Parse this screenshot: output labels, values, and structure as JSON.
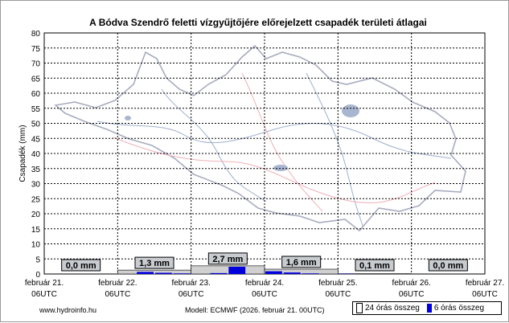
{
  "title": "A Bódva  Szendrő feletti vízgyűjtőjére előrejelzett csapadék területi átlagai",
  "colors": {
    "bar6h": "#0000dd",
    "bar24h": "#d0d0d0",
    "grid": "#000000",
    "map_line": "#a7acbf",
    "map_river": "#9fb0cf",
    "map_road": "#f0b0b8"
  },
  "chart_data": {
    "type": "bar",
    "ylabel": "Csapadék (mm)",
    "ylim": [
      0,
      80
    ],
    "yticks": [
      0,
      5,
      10,
      15,
      20,
      25,
      30,
      35,
      40,
      45,
      50,
      55,
      60,
      65,
      70,
      75,
      80
    ],
    "grid": true,
    "days": [
      {
        "label_line1": "február 21.",
        "label_line2": "06UTC"
      },
      {
        "label_line1": "február 22.",
        "label_line2": "06UTC"
      },
      {
        "label_line1": "február 23.",
        "label_line2": "06UTC"
      },
      {
        "label_line1": "február 24.",
        "label_line2": "06UTC"
      },
      {
        "label_line1": "február 25.",
        "label_line2": "06UTC"
      },
      {
        "label_line1": "február 26.",
        "label_line2": "06UTC"
      },
      {
        "label_line1": "február 27.",
        "label_line2": "06UTC"
      }
    ],
    "totals_24h": [
      0.0,
      1.3,
      2.7,
      1.6,
      0.1,
      0.0
    ],
    "total_labels": [
      "0,0 mm",
      "1,3 mm",
      "2,7 mm",
      "1,6 mm",
      "0,1 mm",
      "0,0 mm"
    ],
    "sums_6h": [
      0.0,
      0.0,
      0.0,
      0.0,
      0.0,
      0.7,
      0.4,
      0.2,
      0.0,
      0.3,
      2.4,
      0.0,
      0.9,
      0.5,
      0.2,
      0.0,
      0.1,
      0.0,
      0.0,
      0.0,
      0.0,
      0.0,
      0.0,
      0.0
    ],
    "legend": {
      "item_24h": "24 órás összeg",
      "item_6h": "6 órás összeg",
      "placement": "bottom-right"
    }
  },
  "footer": {
    "website": "www.hydroinfo.hu",
    "model": "Modell: ECMWF (2026. február 21. 00UTC)"
  }
}
